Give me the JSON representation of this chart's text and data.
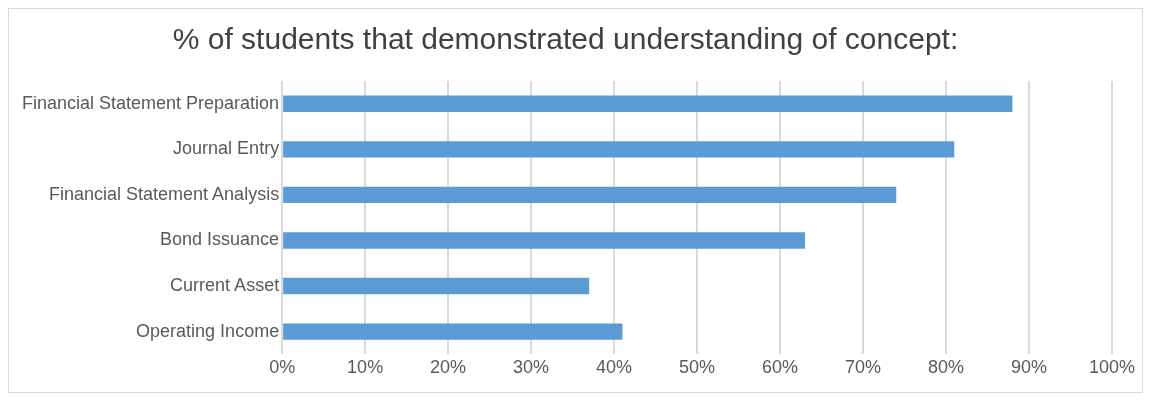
{
  "chart_data": {
    "type": "bar",
    "orientation": "horizontal",
    "title": "% of students that demonstrated understanding of concept:",
    "categories": [
      "Financial Statement Preparation",
      "Journal Entry",
      "Financial Statement Analysis",
      "Bond Issuance",
      "Current Asset",
      "Operating Income"
    ],
    "values": [
      88,
      81,
      74,
      63,
      37,
      41
    ],
    "color": "#5b9bd5",
    "xlim": [
      0,
      100
    ],
    "xticks": [
      {
        "value": 0,
        "label": "0%"
      },
      {
        "value": 10,
        "label": "10%"
      },
      {
        "value": 20,
        "label": "20%"
      },
      {
        "value": 30,
        "label": "30%"
      },
      {
        "value": 40,
        "label": "40%"
      },
      {
        "value": 50,
        "label": "50%"
      },
      {
        "value": 60,
        "label": "60%"
      },
      {
        "value": 70,
        "label": "70%"
      },
      {
        "value": 80,
        "label": "80%"
      },
      {
        "value": 90,
        "label": "90%"
      },
      {
        "value": 100,
        "label": "100%"
      }
    ],
    "grid": "x"
  }
}
